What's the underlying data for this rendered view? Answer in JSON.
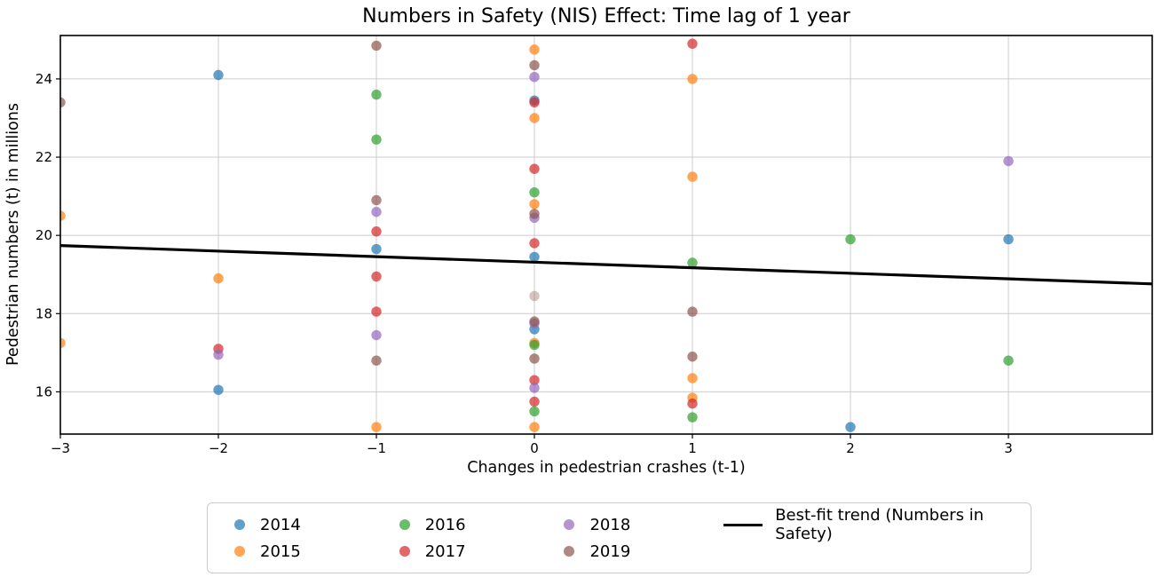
{
  "chart_data": {
    "type": "scatter",
    "title": "Numbers in Safety (NIS) Effect: Time lag of 1 year",
    "xlabel": "Changes in pedestrian crashes (t-1)",
    "ylabel": "Pedestrian numbers (t) in millions",
    "xlim": [
      -3,
      3.91
    ],
    "ylim": [
      14.92,
      25.11
    ],
    "xtick_values": [
      -3,
      -2,
      -1,
      0,
      1,
      2,
      3
    ],
    "xtick_labels": [
      "−3",
      "−2",
      "−1",
      "0",
      "1",
      "2",
      "3"
    ],
    "ytick_values": [
      16,
      18,
      20,
      22,
      24
    ],
    "ytick_labels": [
      "16",
      "18",
      "20",
      "22",
      "24"
    ],
    "grid": true,
    "grid_color": "#cccccc",
    "point_alpha": 0.7,
    "point_radius": 5.7,
    "series": [
      {
        "name": "2014",
        "color": "#1f77b4",
        "points": [
          [
            -2,
            24.1
          ],
          [
            -2,
            16.05
          ],
          [
            -1,
            19.65
          ],
          [
            0,
            23.45
          ],
          [
            0,
            19.45
          ],
          [
            0,
            17.6
          ],
          [
            2,
            15.1
          ],
          [
            3,
            19.9
          ]
        ]
      },
      {
        "name": "2015",
        "color": "#ff7f0e",
        "points": [
          [
            -3,
            20.5
          ],
          [
            -3,
            17.25
          ],
          [
            -2,
            18.9
          ],
          [
            -1,
            15.1
          ],
          [
            0,
            24.75
          ],
          [
            0,
            23.0
          ],
          [
            0,
            20.8
          ],
          [
            0,
            17.25
          ],
          [
            0,
            15.1
          ],
          [
            1,
            24.0
          ],
          [
            1,
            21.5
          ],
          [
            1,
            16.35
          ],
          [
            1,
            15.85
          ]
        ]
      },
      {
        "name": "2016",
        "color": "#2ca02c",
        "points": [
          [
            -1,
            23.6
          ],
          [
            -1,
            22.45
          ],
          [
            0,
            21.1
          ],
          [
            0,
            17.2
          ],
          [
            0,
            15.5
          ],
          [
            1,
            19.3
          ],
          [
            1,
            15.35
          ],
          [
            2,
            19.9
          ],
          [
            3,
            16.8
          ]
        ]
      },
      {
        "name": "2017",
        "color": "#d62728",
        "points": [
          [
            -2,
            17.1
          ],
          [
            -1,
            20.1
          ],
          [
            -1,
            18.95
          ],
          [
            -1,
            18.05
          ],
          [
            0,
            23.4
          ],
          [
            0,
            21.7
          ],
          [
            0,
            19.8
          ],
          [
            0,
            16.3
          ],
          [
            0,
            15.75
          ],
          [
            1,
            24.9
          ],
          [
            1,
            15.7
          ]
        ]
      },
      {
        "name": "2018",
        "color": "#9467bd",
        "points": [
          [
            -2,
            16.95
          ],
          [
            -1,
            20.6
          ],
          [
            -1,
            17.45
          ],
          [
            0,
            24.05
          ],
          [
            0,
            20.45
          ],
          [
            0,
            17.75
          ],
          [
            0,
            16.1
          ],
          [
            3,
            21.9
          ]
        ]
      },
      {
        "name": "2019",
        "color": "#8c564b",
        "points": [
          [
            -3,
            23.4
          ],
          [
            -1,
            24.85
          ],
          [
            -1,
            20.9
          ],
          [
            -1,
            16.8
          ],
          [
            0,
            24.35
          ],
          [
            0,
            20.55
          ],
          [
            0,
            18.45,
            0.35
          ],
          [
            0,
            17.8
          ],
          [
            0,
            16.85
          ],
          [
            1,
            18.05
          ],
          [
            1,
            16.9
          ]
        ]
      }
    ],
    "trend": {
      "label": "Best-fit trend (Numbers in Safety)",
      "color": "#000000",
      "x1": -3,
      "y1": 19.74,
      "x2": 3.91,
      "y2": 18.76
    },
    "legend_position": "below center"
  }
}
